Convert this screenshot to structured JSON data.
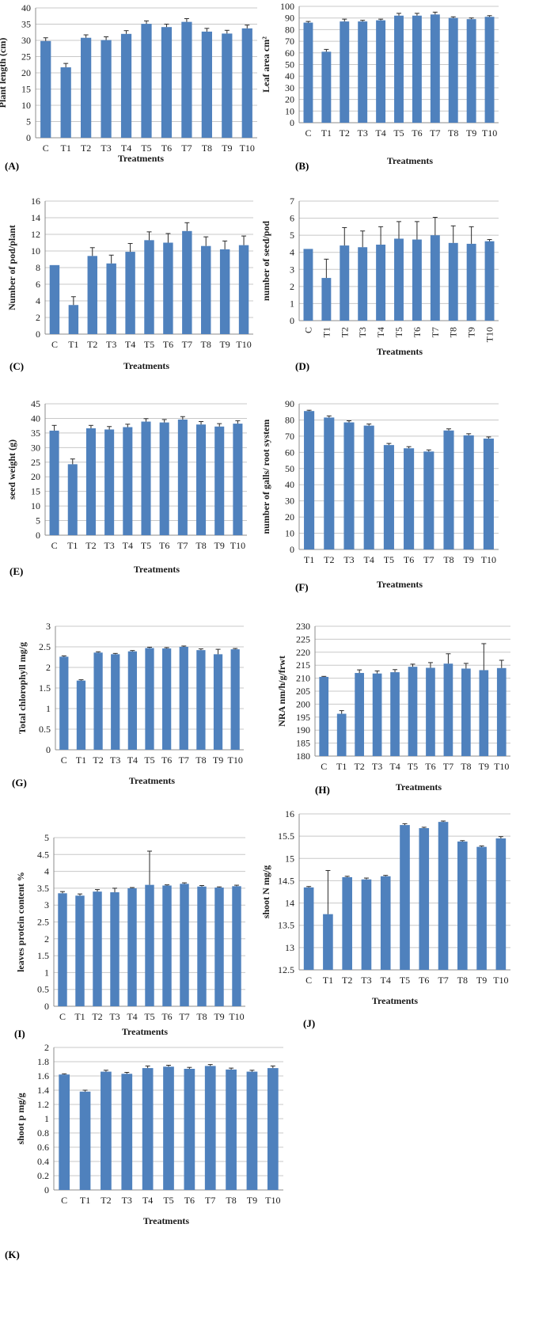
{
  "colors": {
    "bar": "#4f81bd",
    "grid": "#c8c8c8",
    "axis": "#8c8c8c"
  },
  "chart_data": [
    {
      "type": "bar",
      "panel": "(A)",
      "categories": [
        "C",
        "T1",
        "T2",
        "T3",
        "T4",
        "T5",
        "T6",
        "T7",
        "T8",
        "T9",
        "T10"
      ],
      "values": [
        29.8,
        21.7,
        30.8,
        30.1,
        32.0,
        35.1,
        34.1,
        35.7,
        32.7,
        32.1,
        33.7
      ],
      "errors": [
        1.0,
        1.2,
        0.9,
        1.0,
        1.0,
        0.9,
        0.9,
        1.0,
        1.0,
        1.0,
        1.0
      ],
      "ylabel": "Plant length (cm)",
      "xlabel": "Treatments",
      "ylim": [
        0,
        40
      ],
      "yticks": [
        0,
        5,
        10,
        15,
        20,
        25,
        30,
        35,
        40
      ],
      "grid": true
    },
    {
      "type": "bar",
      "panel": "(B)",
      "categories": [
        "C",
        "T1",
        "T2",
        "T3",
        "T4",
        "T5",
        "T6",
        "T7",
        "T8",
        "T9",
        "T10"
      ],
      "values": [
        86,
        61,
        87,
        87,
        88,
        92,
        92,
        93,
        90,
        89,
        91
      ],
      "errors": [
        1,
        2,
        2,
        1,
        1,
        2,
        2,
        2,
        1,
        1,
        1
      ],
      "ylabel": "Leaf area cm²",
      "xlabel": "Treatments",
      "ylim": [
        0,
        100
      ],
      "yticks": [
        0,
        10,
        20,
        30,
        40,
        50,
        60,
        70,
        80,
        90,
        100
      ],
      "grid": true
    },
    {
      "type": "bar",
      "panel": "(C)",
      "categories": [
        "C",
        "T1",
        "T2",
        "T3",
        "T4",
        "T5",
        "T6",
        "T7",
        "T8",
        "T9",
        "T10"
      ],
      "values": [
        8.3,
        3.5,
        9.4,
        8.5,
        9.9,
        11.3,
        11.0,
        12.4,
        10.6,
        10.2,
        10.7
      ],
      "errors": [
        0,
        1.0,
        1.0,
        1.0,
        1.0,
        1.0,
        1.1,
        1.0,
        1.1,
        1.0,
        1.1
      ],
      "ylabel": "Number of pod/plant",
      "xlabel": "Treatments",
      "ylim": [
        0,
        16
      ],
      "yticks": [
        0,
        2,
        4,
        6,
        8,
        10,
        12,
        14,
        16
      ],
      "grid": true
    },
    {
      "type": "bar",
      "panel": "(D)",
      "categories": [
        "C",
        "T1",
        "T2",
        "T3",
        "T4",
        "T5",
        "T6",
        "T7",
        "T8",
        "T9",
        "T10"
      ],
      "values": [
        4.2,
        2.5,
        4.4,
        4.3,
        4.45,
        4.8,
        4.75,
        5.0,
        4.55,
        4.5,
        4.65
      ],
      "errors": [
        0,
        1.1,
        1.05,
        0.95,
        1.05,
        1.0,
        1.05,
        1.05,
        1.0,
        1.0,
        0.1
      ],
      "ylabel": "number of seed/pod",
      "xlabel": "Treatments",
      "ylim": [
        0,
        7
      ],
      "yticks": [
        0,
        1,
        2,
        3,
        4,
        5,
        6,
        7
      ],
      "grid": true
    },
    {
      "type": "bar",
      "panel": "(E)",
      "categories": [
        "C",
        "T1",
        "T2",
        "T3",
        "T4",
        "T5",
        "T6",
        "T7",
        "T8",
        "T9",
        "T10"
      ],
      "values": [
        35.8,
        24.3,
        36.6,
        36.2,
        37.0,
        38.9,
        38.6,
        39.6,
        37.9,
        37.2,
        38.2
      ],
      "errors": [
        1.8,
        1.8,
        1.0,
        1.0,
        1.0,
        1.0,
        1.0,
        1.0,
        1.0,
        1.0,
        1.0
      ],
      "ylabel": "seed weight (g)",
      "xlabel": "Treatments",
      "ylim": [
        0,
        45
      ],
      "yticks": [
        0,
        5,
        10,
        15,
        20,
        25,
        30,
        35,
        40,
        45
      ],
      "grid": true
    },
    {
      "type": "bar",
      "panel": "(F)",
      "categories": [
        "T1",
        "T2",
        "T3",
        "T4",
        "T5",
        "T6",
        "T7",
        "T8",
        "T9",
        "T10"
      ],
      "values": [
        85.5,
        81.5,
        78.5,
        76.5,
        64.5,
        62.5,
        60.5,
        73.5,
        70.5,
        68.5
      ],
      "errors": [
        0.5,
        1.0,
        1.0,
        1.0,
        1.0,
        1.0,
        1.0,
        1.0,
        1.0,
        1.0
      ],
      "ylabel": "number of galls/ root system",
      "xlabel": "Treatments",
      "ylim": [
        0,
        90
      ],
      "yticks": [
        0,
        10,
        20,
        30,
        40,
        50,
        60,
        70,
        80,
        90
      ],
      "grid": true
    },
    {
      "type": "bar",
      "panel": "(G)",
      "categories": [
        "C",
        "T1",
        "T2",
        "T3",
        "T4",
        "T5",
        "T6",
        "T7",
        "T8",
        "T9",
        "T10"
      ],
      "values": [
        2.26,
        1.68,
        2.36,
        2.32,
        2.39,
        2.47,
        2.46,
        2.5,
        2.42,
        2.32,
        2.44
      ],
      "errors": [
        0.02,
        0.02,
        0.02,
        0.02,
        0.02,
        0.02,
        0.02,
        0.02,
        0.03,
        0.12,
        0.02
      ],
      "ylabel": "Total chlorophyll mg/g",
      "xlabel": "Treatments",
      "ylim": [
        0,
        3
      ],
      "yticks": [
        0,
        0.5,
        1,
        1.5,
        2,
        2.5,
        3
      ],
      "grid": true
    },
    {
      "type": "bar",
      "panel": "(H)",
      "categories": [
        "C",
        "T1",
        "T2",
        "T3",
        "T4",
        "T5",
        "T6",
        "T7",
        "T8",
        "T9",
        "T10"
      ],
      "values": [
        210.5,
        196.3,
        212.0,
        211.8,
        212.3,
        214.4,
        214.0,
        215.6,
        213.7,
        213.1,
        213.9
      ],
      "errors": [
        0.2,
        1.2,
        1.2,
        1.0,
        1.0,
        1.0,
        2.0,
        3.8,
        2.0,
        10.2,
        3.0
      ],
      "ylabel": "NRA nm/h/g/frwt",
      "xlabel": "Treatments",
      "ylim": [
        180,
        230
      ],
      "yticks": [
        180,
        185,
        190,
        195,
        200,
        205,
        210,
        215,
        220,
        225,
        230
      ],
      "grid": true
    },
    {
      "type": "bar",
      "panel": "(I)",
      "categories": [
        "C",
        "T1",
        "T2",
        "T3",
        "T4",
        "T5",
        "T6",
        "T7",
        "T8",
        "T9",
        "T10"
      ],
      "values": [
        3.35,
        3.28,
        3.4,
        3.38,
        3.5,
        3.6,
        3.58,
        3.63,
        3.55,
        3.52,
        3.56
      ],
      "errors": [
        0.05,
        0.05,
        0.06,
        0.12,
        0.02,
        1.0,
        0.02,
        0.03,
        0.03,
        0.02,
        0.03
      ],
      "ylabel": "leaves protein content %",
      "xlabel": "Treatments",
      "ylim": [
        0,
        5
      ],
      "yticks": [
        0,
        0.5,
        1,
        1.5,
        2,
        2.5,
        3,
        3.5,
        4,
        4.5,
        5
      ],
      "grid": true
    },
    {
      "type": "bar",
      "panel": "(J)",
      "categories": [
        "C",
        "T1",
        "T2",
        "T3",
        "T4",
        "T5",
        "T6",
        "T7",
        "T8",
        "T9",
        "T10"
      ],
      "values": [
        14.35,
        13.75,
        14.58,
        14.53,
        14.6,
        15.75,
        15.68,
        15.82,
        15.38,
        15.26,
        15.45
      ],
      "errors": [
        0.02,
        0.98,
        0.02,
        0.03,
        0.02,
        0.03,
        0.02,
        0.02,
        0.02,
        0.02,
        0.04
      ],
      "ylabel": "shoot N mg/g",
      "xlabel": "Treatments",
      "ylim": [
        12.5,
        16
      ],
      "yticks": [
        12.5,
        13,
        13.5,
        14,
        14.5,
        15,
        15.5,
        16
      ],
      "grid": true
    },
    {
      "type": "bar",
      "panel": "(K)",
      "categories": [
        "C",
        "T1",
        "T2",
        "T3",
        "T4",
        "T5",
        "T6",
        "T7",
        "T8",
        "T9",
        "T10"
      ],
      "values": [
        1.62,
        1.38,
        1.66,
        1.63,
        1.71,
        1.73,
        1.7,
        1.74,
        1.69,
        1.66,
        1.71
      ],
      "errors": [
        0.01,
        0.02,
        0.02,
        0.02,
        0.03,
        0.02,
        0.02,
        0.02,
        0.02,
        0.02,
        0.03
      ],
      "ylabel": "shoot p mg/g",
      "xlabel": "Treatments",
      "ylim": [
        0,
        2
      ],
      "yticks": [
        0,
        0.2,
        0.4,
        0.6,
        0.8,
        1,
        1.2,
        1.4,
        1.6,
        1.8,
        2
      ],
      "grid": true
    }
  ]
}
